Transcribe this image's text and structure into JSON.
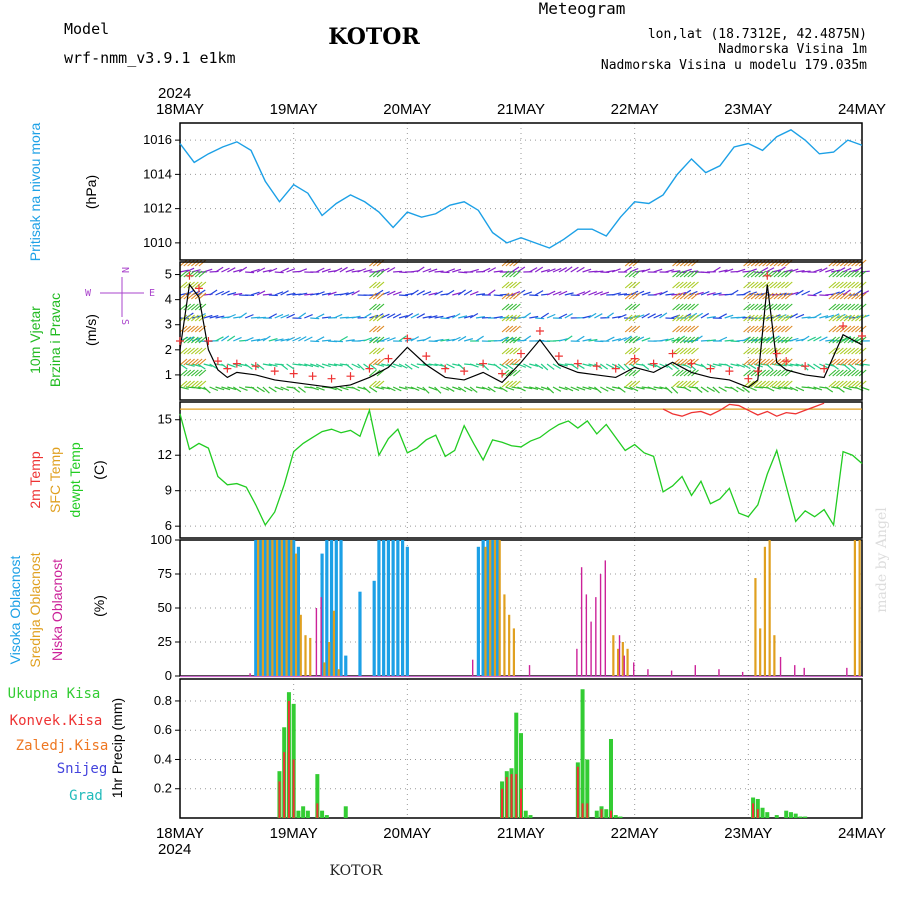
{
  "header": {
    "model_label": "Model",
    "model_name": "wrf-nmm_v3.9.1  e1km",
    "station": "KOTOR",
    "meteogram_title": "Meteogram",
    "lonlat": "lon,lat (18.7312E, 42.4875N)",
    "altitude": "Nadmorska Visina 1m",
    "model_altitude": "Nadmorska Visina u modelu 179.035m",
    "year_top": "2024",
    "year_bottom": "2024",
    "footer": "KOTOR",
    "credit": "made by Angel"
  },
  "colors": {
    "pressure": "#1ca0e6",
    "wind_label": "#22bb22",
    "dir_label": "#aa44cc",
    "temp2m": "#ee3333",
    "sfc_temp": "#e0a020",
    "dewpoint": "#22cc22",
    "high_cloud": "#1ca0e6",
    "mid_cloud": "#e0a020",
    "low_cloud": "#cc2299",
    "total_precip": "#33cc33",
    "conv_precip": "#ee3333",
    "frozen_precip": "#ee7722",
    "snow": "#4444dd",
    "hail": "#22bbbb"
  },
  "chart_data": [
    {
      "type": "line",
      "panel": "pressure",
      "ylabel_name": "Pritisak na nivou mora",
      "ylabel_unit": "(hPa)",
      "ylim": [
        1009,
        1017
      ],
      "yticks": [
        1010,
        1012,
        1014,
        1016
      ],
      "xlim": [
        0,
        144
      ],
      "xticks": [
        "18MAY",
        "19MAY",
        "20MAY",
        "21MAY",
        "22MAY",
        "23MAY",
        "24MAY"
      ],
      "x": [
        0,
        3,
        6,
        9,
        12,
        15,
        18,
        21,
        24,
        27,
        30,
        33,
        36,
        39,
        42,
        45,
        48,
        51,
        54,
        57,
        60,
        63,
        66,
        69,
        72,
        75,
        78,
        81,
        84,
        87,
        90,
        93,
        96,
        99,
        102,
        105,
        108,
        111,
        114,
        117,
        120,
        123,
        126,
        129,
        132,
        135,
        138,
        141,
        144
      ],
      "values": [
        1015.8,
        1014.7,
        1015.2,
        1015.6,
        1015.9,
        1015.4,
        1013.6,
        1012.4,
        1013.4,
        1012.9,
        1011.6,
        1012.3,
        1012.8,
        1012.4,
        1011.8,
        1010.9,
        1011.8,
        1011.5,
        1011.7,
        1012.2,
        1012.4,
        1011.9,
        1010.6,
        1010.0,
        1010.3,
        1010.0,
        1009.7,
        1010.2,
        1010.8,
        1010.8,
        1010.4,
        1011.5,
        1012.4,
        1012.3,
        1012.8,
        1014.0,
        1014.9,
        1014.1,
        1014.5,
        1015.6,
        1015.8,
        1015.4,
        1016.2,
        1016.6,
        1016.0,
        1015.2,
        1015.3,
        1016.0,
        1015.7
      ]
    },
    {
      "type": "line",
      "panel": "wind",
      "ylabel_name": "10m Vjetar",
      "ylabel_name2": "Brzina i Pravac",
      "ylabel_unit": "(m/s)",
      "compass": [
        "N",
        "E",
        "S",
        "W"
      ],
      "ylim": [
        0,
        5.5
      ],
      "yticks": [
        1,
        2,
        3,
        4,
        5
      ],
      "xlim": [
        0,
        144
      ],
      "x": [
        0,
        2,
        4,
        6,
        8,
        10,
        12,
        16,
        20,
        24,
        28,
        32,
        36,
        40,
        44,
        48,
        52,
        56,
        60,
        64,
        68,
        72,
        76,
        80,
        84,
        88,
        92,
        96,
        100,
        104,
        108,
        112,
        116,
        120,
        122,
        124,
        126,
        128,
        132,
        136,
        140,
        144
      ],
      "values": [
        2.0,
        4.6,
        4.1,
        2.0,
        1.2,
        0.9,
        1.1,
        1.0,
        0.8,
        0.7,
        0.6,
        0.5,
        0.6,
        0.9,
        1.3,
        2.1,
        1.4,
        0.9,
        0.8,
        1.1,
        0.7,
        1.5,
        2.4,
        1.4,
        1.1,
        1.0,
        0.9,
        1.3,
        1.1,
        1.5,
        1.1,
        0.9,
        0.8,
        0.5,
        0.8,
        4.6,
        1.5,
        1.2,
        1.0,
        0.9,
        2.6,
        2.2
      ]
    },
    {
      "type": "line",
      "panel": "temperature",
      "ylabel_names": [
        "2m Temp",
        "SFC Temp",
        "dewpt Temp"
      ],
      "ylabel_unit": "(C)",
      "ylim": [
        5,
        16.5
      ],
      "yticks": [
        6,
        9,
        12,
        15
      ],
      "xlim": [
        0,
        144
      ],
      "series": [
        {
          "name": "SFC Temp",
          "x": [
            0,
            144
          ],
          "values": [
            15.9,
            15.9
          ]
        },
        {
          "name": "2m Temp",
          "x": [
            102,
            104,
            106,
            108,
            110,
            112,
            114,
            116,
            118,
            120,
            122,
            124,
            126,
            128,
            130,
            132,
            134,
            136
          ],
          "values": [
            15.9,
            15.5,
            15.3,
            15.6,
            15.7,
            15.4,
            15.8,
            16.3,
            16.2,
            15.8,
            15.4,
            15.7,
            15.3,
            15.6,
            15.5,
            15.8,
            16.1,
            16.4
          ]
        },
        {
          "name": "dewpt Temp",
          "x": [
            0,
            2,
            4,
            6,
            8,
            10,
            12,
            14,
            16,
            18,
            20,
            22,
            24,
            26,
            28,
            30,
            32,
            34,
            36,
            38,
            40,
            42,
            44,
            46,
            48,
            50,
            52,
            54,
            56,
            58,
            60,
            62,
            64,
            66,
            68,
            70,
            72,
            74,
            76,
            78,
            80,
            82,
            84,
            86,
            88,
            90,
            92,
            94,
            96,
            98,
            100,
            102,
            104,
            106,
            108,
            110,
            112,
            114,
            116,
            118,
            120,
            122,
            124,
            126,
            128,
            130,
            132,
            134,
            136,
            138,
            140,
            142,
            144
          ],
          "values": [
            15.5,
            12.5,
            13.0,
            12.6,
            10.2,
            9.5,
            9.6,
            9.3,
            7.8,
            6.1,
            7.2,
            9.5,
            12.3,
            13.0,
            13.5,
            14.0,
            14.2,
            13.9,
            14.1,
            13.6,
            15.8,
            12.0,
            13.4,
            14.2,
            12.2,
            12.6,
            13.3,
            13.7,
            11.9,
            12.4,
            14.5,
            13.0,
            11.6,
            13.3,
            13.1,
            12.8,
            12.7,
            13.2,
            13.5,
            14.1,
            14.6,
            14.9,
            14.3,
            14.9,
            13.8,
            14.6,
            13.5,
            12.4,
            12.9,
            12.2,
            11.9,
            8.9,
            9.4,
            10.2,
            8.6,
            9.8,
            7.9,
            8.3,
            9.2,
            7.1,
            6.8,
            7.8,
            10.4,
            12.4,
            9.4,
            6.4,
            7.3,
            6.8,
            7.4,
            6.1,
            12.3,
            12.0,
            11.3
          ]
        }
      ]
    },
    {
      "type": "bar",
      "panel": "clouds",
      "ylabel_names": [
        "Visoka Oblacnost",
        "Srednja Oblacnost",
        "Niska Oblacnost"
      ],
      "ylabel_unit": "(%)",
      "ylim": [
        0,
        100
      ],
      "yticks": [
        0,
        25,
        50,
        75,
        100
      ],
      "xlim": [
        0,
        144
      ],
      "series": [
        {
          "name": "Visoka Oblacnost",
          "x": [
            16,
            17,
            18,
            19,
            20,
            21,
            22,
            23,
            24,
            25,
            30,
            31,
            32,
            33,
            34,
            35,
            38,
            41,
            42,
            43,
            44,
            45,
            46,
            47,
            48,
            63,
            64,
            65,
            66,
            67
          ],
          "values": [
            100,
            100,
            100,
            100,
            100,
            100,
            100,
            100,
            100,
            95,
            90,
            100,
            100,
            100,
            100,
            15,
            62,
            70,
            100,
            100,
            100,
            100,
            100,
            100,
            95,
            95,
            100,
            100,
            100,
            100
          ]
        },
        {
          "name": "Srednja Oblacnost",
          "x": [
            16.5,
            17.5,
            18.5,
            19.5,
            20.5,
            21.5,
            22.5,
            23.5,
            24.5,
            25.5,
            26.5,
            27.5,
            30.5,
            31.5,
            32.5,
            33.5,
            64.5,
            65.5,
            66.5,
            67.5,
            68.5,
            69.5,
            70.5,
            91.5,
            92.5,
            93.5,
            94.5,
            121.5,
            122.5,
            123.5,
            124.5,
            125.5,
            142.5,
            143.5
          ],
          "values": [
            100,
            100,
            100,
            100,
            100,
            100,
            100,
            100,
            90,
            45,
            30,
            28,
            10,
            25,
            48,
            5,
            95,
            100,
            100,
            100,
            60,
            45,
            35,
            30,
            20,
            25,
            20,
            72,
            35,
            95,
            100,
            30,
            100,
            100
          ]
        },
        {
          "name": "Niska Oblacnost",
          "x": [
            14.8,
            28.8,
            29.8,
            61.8,
            73.8,
            83.8,
            84.8,
            85.8,
            86.8,
            87.8,
            88.8,
            89.8,
            92.8,
            93.8,
            95.8,
            98.8,
            103.8,
            108.8,
            113.8,
            118.8,
            126.8,
            129.8,
            131.8,
            140.8
          ],
          "values": [
            2,
            50,
            58,
            12,
            8,
            20,
            80,
            60,
            40,
            58,
            75,
            85,
            30,
            15,
            10,
            5,
            4,
            8,
            5,
            3,
            14,
            8,
            6,
            6
          ]
        }
      ]
    },
    {
      "type": "bar",
      "panel": "precip",
      "ylabel_names": [
        "Ukupna Kisa",
        "Konvek.Kisa",
        "Zaledj.Kisa",
        "Snijeg",
        "Grad"
      ],
      "ylabel_unit": "1hr Precip (mm)",
      "ylim": [
        0,
        0.95
      ],
      "yticks": [
        0.2,
        0.4,
        0.6,
        0.8
      ],
      "xlim": [
        0,
        144
      ],
      "xticks_bottom": [
        "18MAY",
        "19MAY",
        "20MAY",
        "21MAY",
        "22MAY",
        "23MAY",
        "24MAY"
      ],
      "series": [
        {
          "name": "Ukupna Kisa",
          "x": [
            21,
            22,
            23,
            24,
            25,
            26,
            27,
            29,
            30,
            31,
            35,
            68,
            69,
            70,
            71,
            72,
            73,
            74,
            84,
            85,
            86,
            88,
            89,
            90,
            91,
            92,
            93,
            121,
            122,
            123,
            124,
            126,
            128,
            129,
            130,
            131,
            132
          ],
          "values": [
            0.32,
            0.62,
            0.86,
            0.78,
            0.05,
            0.08,
            0.05,
            0.3,
            0.05,
            0.02,
            0.08,
            0.25,
            0.32,
            0.34,
            0.72,
            0.58,
            0.05,
            0.02,
            0.38,
            0.88,
            0.4,
            0.05,
            0.08,
            0.06,
            0.54,
            0.02,
            0.01,
            0.14,
            0.13,
            0.07,
            0.04,
            0.02,
            0.05,
            0.04,
            0.03,
            0.01,
            0.01
          ]
        },
        {
          "name": "Konvek.Kisa",
          "x": [
            21,
            22,
            23,
            24,
            29,
            68,
            69,
            70,
            71,
            72,
            84,
            85,
            86,
            89,
            91,
            121,
            122
          ],
          "values": [
            0.25,
            0.45,
            0.8,
            0.4,
            0.1,
            0.2,
            0.28,
            0.3,
            0.3,
            0.2,
            0.35,
            0.1,
            0.1,
            0.06,
            0.05,
            0.1,
            0.06
          ]
        }
      ]
    }
  ]
}
